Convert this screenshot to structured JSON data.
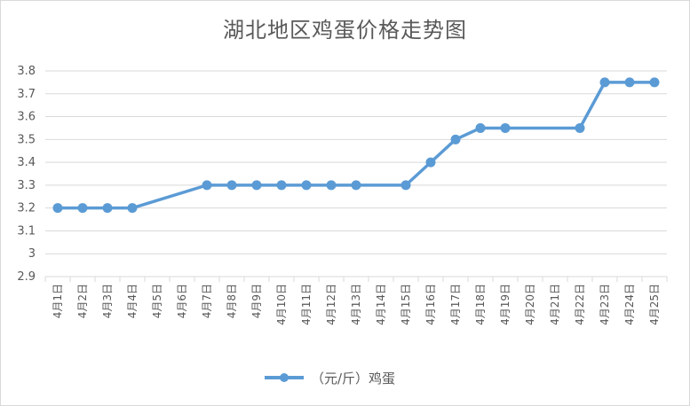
{
  "chart_data": {
    "type": "line",
    "title": "湖北地区鸡蛋价格走势图",
    "categories": [
      "4月1日",
      "4月2日",
      "4月3日",
      "4月4日",
      "4月5日",
      "4月6日",
      "4月7日",
      "4月8日",
      "4月9日",
      "4月10日",
      "4月11日",
      "4月12日",
      "4月13日",
      "4月14日",
      "4月15日",
      "4月16日",
      "4月17日",
      "4月18日",
      "4月19日",
      "4月20日",
      "4月21日",
      "4月22日",
      "4月23日",
      "4月24日",
      "4月25日"
    ],
    "series": [
      {
        "name": "（元/斤）鸡蛋",
        "values": [
          3.2,
          3.2,
          3.2,
          3.2,
          null,
          null,
          3.3,
          3.3,
          3.3,
          3.3,
          3.3,
          3.3,
          3.3,
          null,
          3.3,
          3.4,
          3.5,
          3.55,
          3.55,
          null,
          null,
          3.55,
          3.75,
          3.75,
          3.75
        ],
        "color": "#5b9bd5"
      }
    ],
    "ylim": [
      2.9,
      3.8
    ],
    "yticks": [
      "2.9",
      "3",
      "3.1",
      "3.2",
      "3.3",
      "3.4",
      "3.5",
      "3.6",
      "3.7",
      "3.8"
    ],
    "grid": true,
    "legend": "bottom",
    "span_gaps": true
  },
  "colors": {
    "series": "#5b9bd5",
    "grid": "#d9d9d9",
    "text": "#595959"
  }
}
